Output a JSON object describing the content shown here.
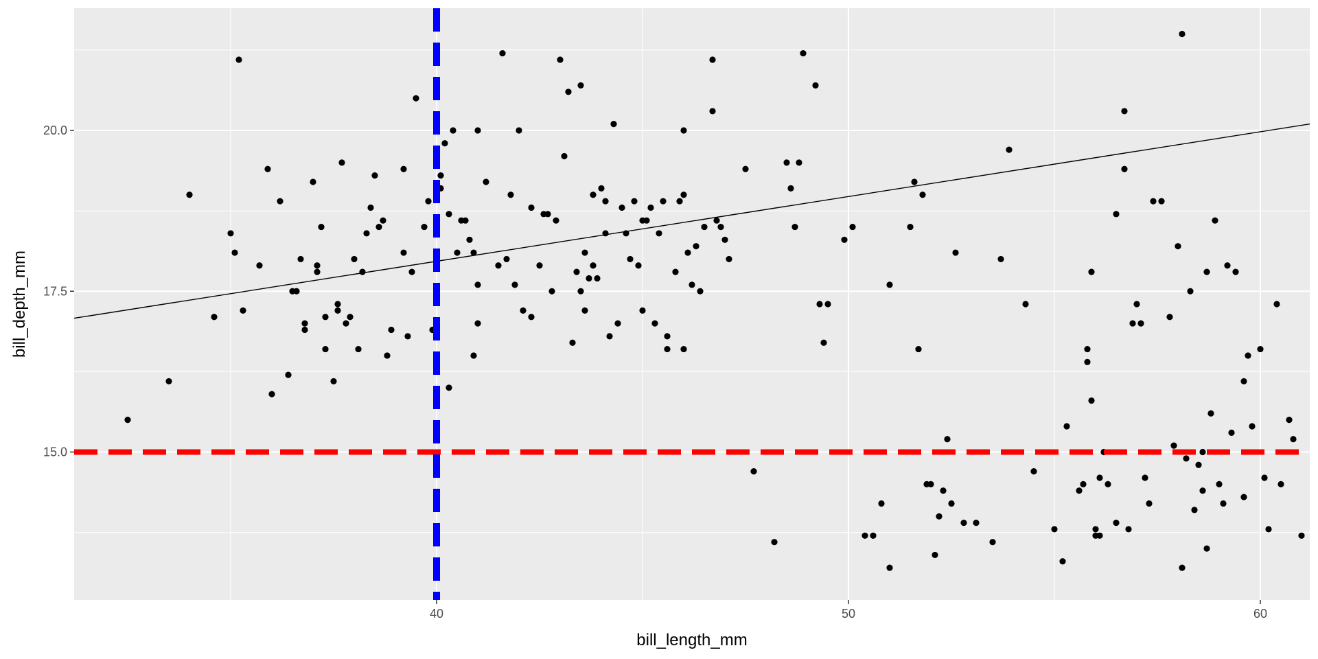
{
  "chart_data": {
    "type": "scatter",
    "title": "",
    "xlabel": "bill_length_mm",
    "ylabel": "bill_depth_mm",
    "xlim": [
      31.2,
      61.2
    ],
    "ylim": [
      12.7,
      21.9
    ],
    "x_ticks": [
      40,
      50,
      60
    ],
    "x_tick_labels": [
      "40",
      "50",
      "60"
    ],
    "y_ticks": [
      15.0,
      17.5,
      20.0
    ],
    "y_tick_labels": [
      "15.0",
      "17.5",
      "20.0"
    ],
    "grid": true,
    "background": "#ebebeb",
    "point_color": "#000000",
    "trend_line": {
      "x": [
        31.2,
        61.2
      ],
      "y": [
        17.08,
        20.1
      ],
      "color": "#000000"
    },
    "vline": {
      "x": 40,
      "color": "#0000ff",
      "style": "dashed"
    },
    "hline": {
      "y": 15.0,
      "color": "#ff0000",
      "style": "dashed"
    },
    "points": [
      [
        32.5,
        15.5
      ],
      [
        33.5,
        16.1
      ],
      [
        34.0,
        19.0
      ],
      [
        34.6,
        17.1
      ],
      [
        35.0,
        18.4
      ],
      [
        35.1,
        18.1
      ],
      [
        35.3,
        17.2
      ],
      [
        35.2,
        21.1
      ],
      [
        35.7,
        17.9
      ],
      [
        35.9,
        19.4
      ],
      [
        36.0,
        15.9
      ],
      [
        36.2,
        18.9
      ],
      [
        36.4,
        16.2
      ],
      [
        36.5,
        17.5
      ],
      [
        36.6,
        17.5
      ],
      [
        36.7,
        18.0
      ],
      [
        36.8,
        16.9
      ],
      [
        36.8,
        17.0
      ],
      [
        37.0,
        19.2
      ],
      [
        37.1,
        17.8
      ],
      [
        37.1,
        17.9
      ],
      [
        37.2,
        18.5
      ],
      [
        37.3,
        16.6
      ],
      [
        37.3,
        17.1
      ],
      [
        37.5,
        16.1
      ],
      [
        37.6,
        17.2
      ],
      [
        37.6,
        17.3
      ],
      [
        37.7,
        19.5
      ],
      [
        37.8,
        17.0
      ],
      [
        37.9,
        17.1
      ],
      [
        38.0,
        18.0
      ],
      [
        38.1,
        16.6
      ],
      [
        38.2,
        17.8
      ],
      [
        38.3,
        18.4
      ],
      [
        38.4,
        18.8
      ],
      [
        38.5,
        19.3
      ],
      [
        38.6,
        18.5
      ],
      [
        38.7,
        18.6
      ],
      [
        38.8,
        16.5
      ],
      [
        38.9,
        16.9
      ],
      [
        39.2,
        18.1
      ],
      [
        39.2,
        19.4
      ],
      [
        39.3,
        16.8
      ],
      [
        39.4,
        17.8
      ],
      [
        39.5,
        20.5
      ],
      [
        39.7,
        18.5
      ],
      [
        39.8,
        18.9
      ],
      [
        39.9,
        16.9
      ],
      [
        40.0,
        17.0
      ],
      [
        40.1,
        19.3
      ],
      [
        40.1,
        19.1
      ],
      [
        40.2,
        19.8
      ],
      [
        40.3,
        16.0
      ],
      [
        40.3,
        18.7
      ],
      [
        40.4,
        20.0
      ],
      [
        40.5,
        18.1
      ],
      [
        40.6,
        18.6
      ],
      [
        40.7,
        18.6
      ],
      [
        40.8,
        18.3
      ],
      [
        40.9,
        18.1
      ],
      [
        40.9,
        16.5
      ],
      [
        41.0,
        17.6
      ],
      [
        41.0,
        17.0
      ],
      [
        41.0,
        20.0
      ],
      [
        41.2,
        19.2
      ],
      [
        41.5,
        17.9
      ],
      [
        41.6,
        21.2
      ],
      [
        41.7,
        18.0
      ],
      [
        41.8,
        19.0
      ],
      [
        41.9,
        17.6
      ],
      [
        42.0,
        20.0
      ],
      [
        42.1,
        17.2
      ],
      [
        42.3,
        18.8
      ],
      [
        42.3,
        17.1
      ],
      [
        42.5,
        17.9
      ],
      [
        42.6,
        18.7
      ],
      [
        42.7,
        18.7
      ],
      [
        42.8,
        17.5
      ],
      [
        42.9,
        18.6
      ],
      [
        43.0,
        21.1
      ],
      [
        43.1,
        19.6
      ],
      [
        43.2,
        20.6
      ],
      [
        43.3,
        16.7
      ],
      [
        43.4,
        17.8
      ],
      [
        43.5,
        20.7
      ],
      [
        43.5,
        17.5
      ],
      [
        43.6,
        18.1
      ],
      [
        43.6,
        17.2
      ],
      [
        43.7,
        17.7
      ],
      [
        43.8,
        17.9
      ],
      [
        43.8,
        19.0
      ],
      [
        43.9,
        17.7
      ],
      [
        44.0,
        19.1
      ],
      [
        44.1,
        18.9
      ],
      [
        44.1,
        18.4
      ],
      [
        44.2,
        16.8
      ],
      [
        44.3,
        20.1
      ],
      [
        44.4,
        17.0
      ],
      [
        44.5,
        18.8
      ],
      [
        44.6,
        18.4
      ],
      [
        44.7,
        18.0
      ],
      [
        44.8,
        18.9
      ],
      [
        44.9,
        17.9
      ],
      [
        45.0,
        18.6
      ],
      [
        45.0,
        17.2
      ],
      [
        45.1,
        18.6
      ],
      [
        45.2,
        18.8
      ],
      [
        45.3,
        17.0
      ],
      [
        45.4,
        18.4
      ],
      [
        45.5,
        18.9
      ],
      [
        45.6,
        16.8
      ],
      [
        45.6,
        16.6
      ],
      [
        45.8,
        17.8
      ],
      [
        45.9,
        18.9
      ],
      [
        46.0,
        19.0
      ],
      [
        46.0,
        16.6
      ],
      [
        46.0,
        20.0
      ],
      [
        46.1,
        18.1
      ],
      [
        46.2,
        17.6
      ],
      [
        46.3,
        18.2
      ],
      [
        46.4,
        17.5
      ],
      [
        46.5,
        18.5
      ],
      [
        46.7,
        20.3
      ],
      [
        46.7,
        21.1
      ],
      [
        46.8,
        18.6
      ],
      [
        46.9,
        18.5
      ],
      [
        47.0,
        18.3
      ],
      [
        47.1,
        18.0
      ],
      [
        47.5,
        19.4
      ],
      [
        47.7,
        14.7
      ],
      [
        48.2,
        13.6
      ],
      [
        48.5,
        19.5
      ],
      [
        48.6,
        19.1
      ],
      [
        48.7,
        18.5
      ],
      [
        48.8,
        19.5
      ],
      [
        48.9,
        21.2
      ],
      [
        49.2,
        20.7
      ],
      [
        49.3,
        17.3
      ],
      [
        49.4,
        16.7
      ],
      [
        49.5,
        17.3
      ],
      [
        49.9,
        18.3
      ],
      [
        50.1,
        18.5
      ],
      [
        50.4,
        13.7
      ],
      [
        50.6,
        13.7
      ],
      [
        50.8,
        14.2
      ],
      [
        51.0,
        13.2
      ],
      [
        51.0,
        17.6
      ],
      [
        51.5,
        18.5
      ],
      [
        51.6,
        19.2
      ],
      [
        51.7,
        16.6
      ],
      [
        51.8,
        19.0
      ],
      [
        51.9,
        14.5
      ],
      [
        52.0,
        14.5
      ],
      [
        52.1,
        13.4
      ],
      [
        52.2,
        14.0
      ],
      [
        52.3,
        14.4
      ],
      [
        52.4,
        15.2
      ],
      [
        52.5,
        14.2
      ],
      [
        52.6,
        18.1
      ],
      [
        52.8,
        13.9
      ],
      [
        53.1,
        13.9
      ],
      [
        53.5,
        13.6
      ],
      [
        53.7,
        18.0
      ],
      [
        53.9,
        19.7
      ],
      [
        54.3,
        17.3
      ],
      [
        54.5,
        14.7
      ],
      [
        55.0,
        13.8
      ],
      [
        55.2,
        13.3
      ],
      [
        55.3,
        15.4
      ],
      [
        55.6,
        14.4
      ],
      [
        55.7,
        14.5
      ],
      [
        55.8,
        16.6
      ],
      [
        55.8,
        16.4
      ],
      [
        55.9,
        17.8
      ],
      [
        55.9,
        15.8
      ],
      [
        56.0,
        13.8
      ],
      [
        56.0,
        13.7
      ],
      [
        56.1,
        14.6
      ],
      [
        56.1,
        13.7
      ],
      [
        56.2,
        15.0
      ],
      [
        56.3,
        14.5
      ],
      [
        56.5,
        13.9
      ],
      [
        56.5,
        18.7
      ],
      [
        56.7,
        19.4
      ],
      [
        56.7,
        20.3
      ],
      [
        56.8,
        13.8
      ],
      [
        56.9,
        17.0
      ],
      [
        57.0,
        17.3
      ],
      [
        57.1,
        17.0
      ],
      [
        57.2,
        14.6
      ],
      [
        57.3,
        14.2
      ],
      [
        57.4,
        18.9
      ],
      [
        57.6,
        18.9
      ],
      [
        57.8,
        17.1
      ],
      [
        57.9,
        15.1
      ],
      [
        58.0,
        18.2
      ],
      [
        58.1,
        13.2
      ],
      [
        58.1,
        21.5
      ],
      [
        58.2,
        14.9
      ],
      [
        58.3,
        17.5
      ],
      [
        58.4,
        14.1
      ],
      [
        58.5,
        14.8
      ],
      [
        58.6,
        15.0
      ],
      [
        58.6,
        14.4
      ],
      [
        58.7,
        13.5
      ],
      [
        58.7,
        17.8
      ],
      [
        58.8,
        15.6
      ],
      [
        58.9,
        18.6
      ],
      [
        59.0,
        14.5
      ],
      [
        59.1,
        14.2
      ],
      [
        59.2,
        17.9
      ],
      [
        59.3,
        15.3
      ],
      [
        59.4,
        17.8
      ],
      [
        59.6,
        16.1
      ],
      [
        59.6,
        14.3
      ],
      [
        59.7,
        16.5
      ],
      [
        59.8,
        15.4
      ],
      [
        60.0,
        16.6
      ],
      [
        60.1,
        14.6
      ],
      [
        60.2,
        13.8
      ],
      [
        60.4,
        17.3
      ],
      [
        60.5,
        14.5
      ],
      [
        60.7,
        15.5
      ],
      [
        60.8,
        15.2
      ],
      [
        61.0,
        13.7
      ]
    ]
  }
}
